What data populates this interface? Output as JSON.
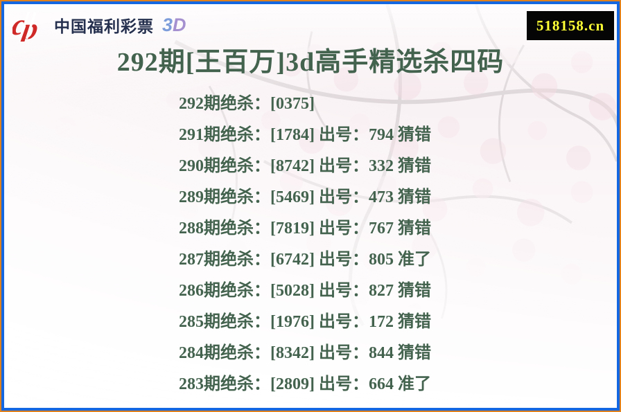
{
  "logo": {
    "brand": "中国福利彩票",
    "brand_suffix_3": "3",
    "brand_suffix_d": "D",
    "icon": "welfare-lottery-cp-icon"
  },
  "badge": {
    "domain": "518158.cn"
  },
  "title": "292期[王百万]3d高手精选杀四码",
  "records": [
    {
      "period": "292",
      "kill_four": "0375",
      "drawn": "",
      "verdict": "",
      "text": "292期绝杀：[0375]"
    },
    {
      "period": "291",
      "kill_four": "1784",
      "drawn": "794",
      "verdict": "猜错",
      "text": "291期绝杀：[1784] 出号：794 猜错"
    },
    {
      "period": "290",
      "kill_four": "8742",
      "drawn": "332",
      "verdict": "猜错",
      "text": "290期绝杀：[8742] 出号：332 猜错"
    },
    {
      "period": "289",
      "kill_four": "5469",
      "drawn": "473",
      "verdict": "猜错",
      "text": "289期绝杀：[5469] 出号：473 猜错"
    },
    {
      "period": "288",
      "kill_four": "7819",
      "drawn": "767",
      "verdict": "猜错",
      "text": "288期绝杀：[7819] 出号：767 猜错"
    },
    {
      "period": "287",
      "kill_four": "6742",
      "drawn": "805",
      "verdict": "准了",
      "text": "287期绝杀：[6742] 出号：805 准了"
    },
    {
      "period": "286",
      "kill_four": "5028",
      "drawn": "827",
      "verdict": "猜错",
      "text": "286期绝杀：[5028] 出号：827 猜错"
    },
    {
      "period": "285",
      "kill_four": "1976",
      "drawn": "172",
      "verdict": "猜错",
      "text": "285期绝杀：[1976] 出号：172 猜错"
    },
    {
      "period": "284",
      "kill_four": "8342",
      "drawn": "844",
      "verdict": "猜错",
      "text": "284期绝杀：[8342] 出号：844 猜错"
    },
    {
      "period": "283",
      "kill_four": "2809",
      "drawn": "664",
      "verdict": "准了",
      "text": "283期绝杀：[2809] 出号：664 准了"
    }
  ],
  "colors": {
    "frame_outer": "#e0821d",
    "frame_inner": "#1467e0",
    "text_green": "#44634f",
    "badge_bg": "#050505",
    "badge_text": "#ffff35",
    "logo_red": "#cf2a28",
    "logo_navy": "#25304f",
    "logo_3_blue": "#7d9cda",
    "logo_d_purple": "#a591cf"
  }
}
